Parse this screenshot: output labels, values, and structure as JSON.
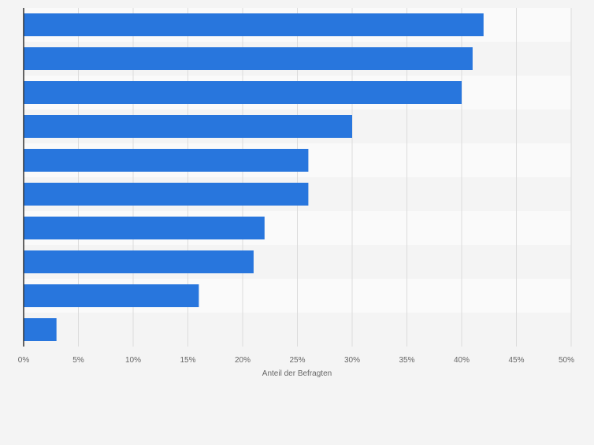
{
  "chart_data": {
    "type": "bar",
    "orientation": "horizontal",
    "title": "",
    "categories": [
      "",
      "",
      "",
      "",
      "",
      "",
      "",
      "",
      "",
      ""
    ],
    "series": [
      {
        "name": "Anteil der Befragten",
        "values": [
          42,
          41,
          40,
          30,
          26,
          26,
          22,
          21,
          16,
          3
        ]
      }
    ],
    "xlabel": "Anteil der Befragten",
    "ylabel": "",
    "xlim": [
      0,
      50
    ],
    "x_ticks": [
      0,
      5,
      10,
      15,
      20,
      25,
      30,
      35,
      40,
      45,
      50
    ],
    "x_tick_labels": [
      "0%",
      "5%",
      "10%",
      "15%",
      "20%",
      "25%",
      "30%",
      "35%",
      "40%",
      "45%",
      "50%"
    ],
    "grid": true,
    "colors": {
      "bar": "#2876dd",
      "band_light": "#fafafa",
      "band_dark": "#f4f4f4",
      "grid": "#dcdcdc",
      "axis": "#333333",
      "tick_text": "#666666"
    }
  }
}
